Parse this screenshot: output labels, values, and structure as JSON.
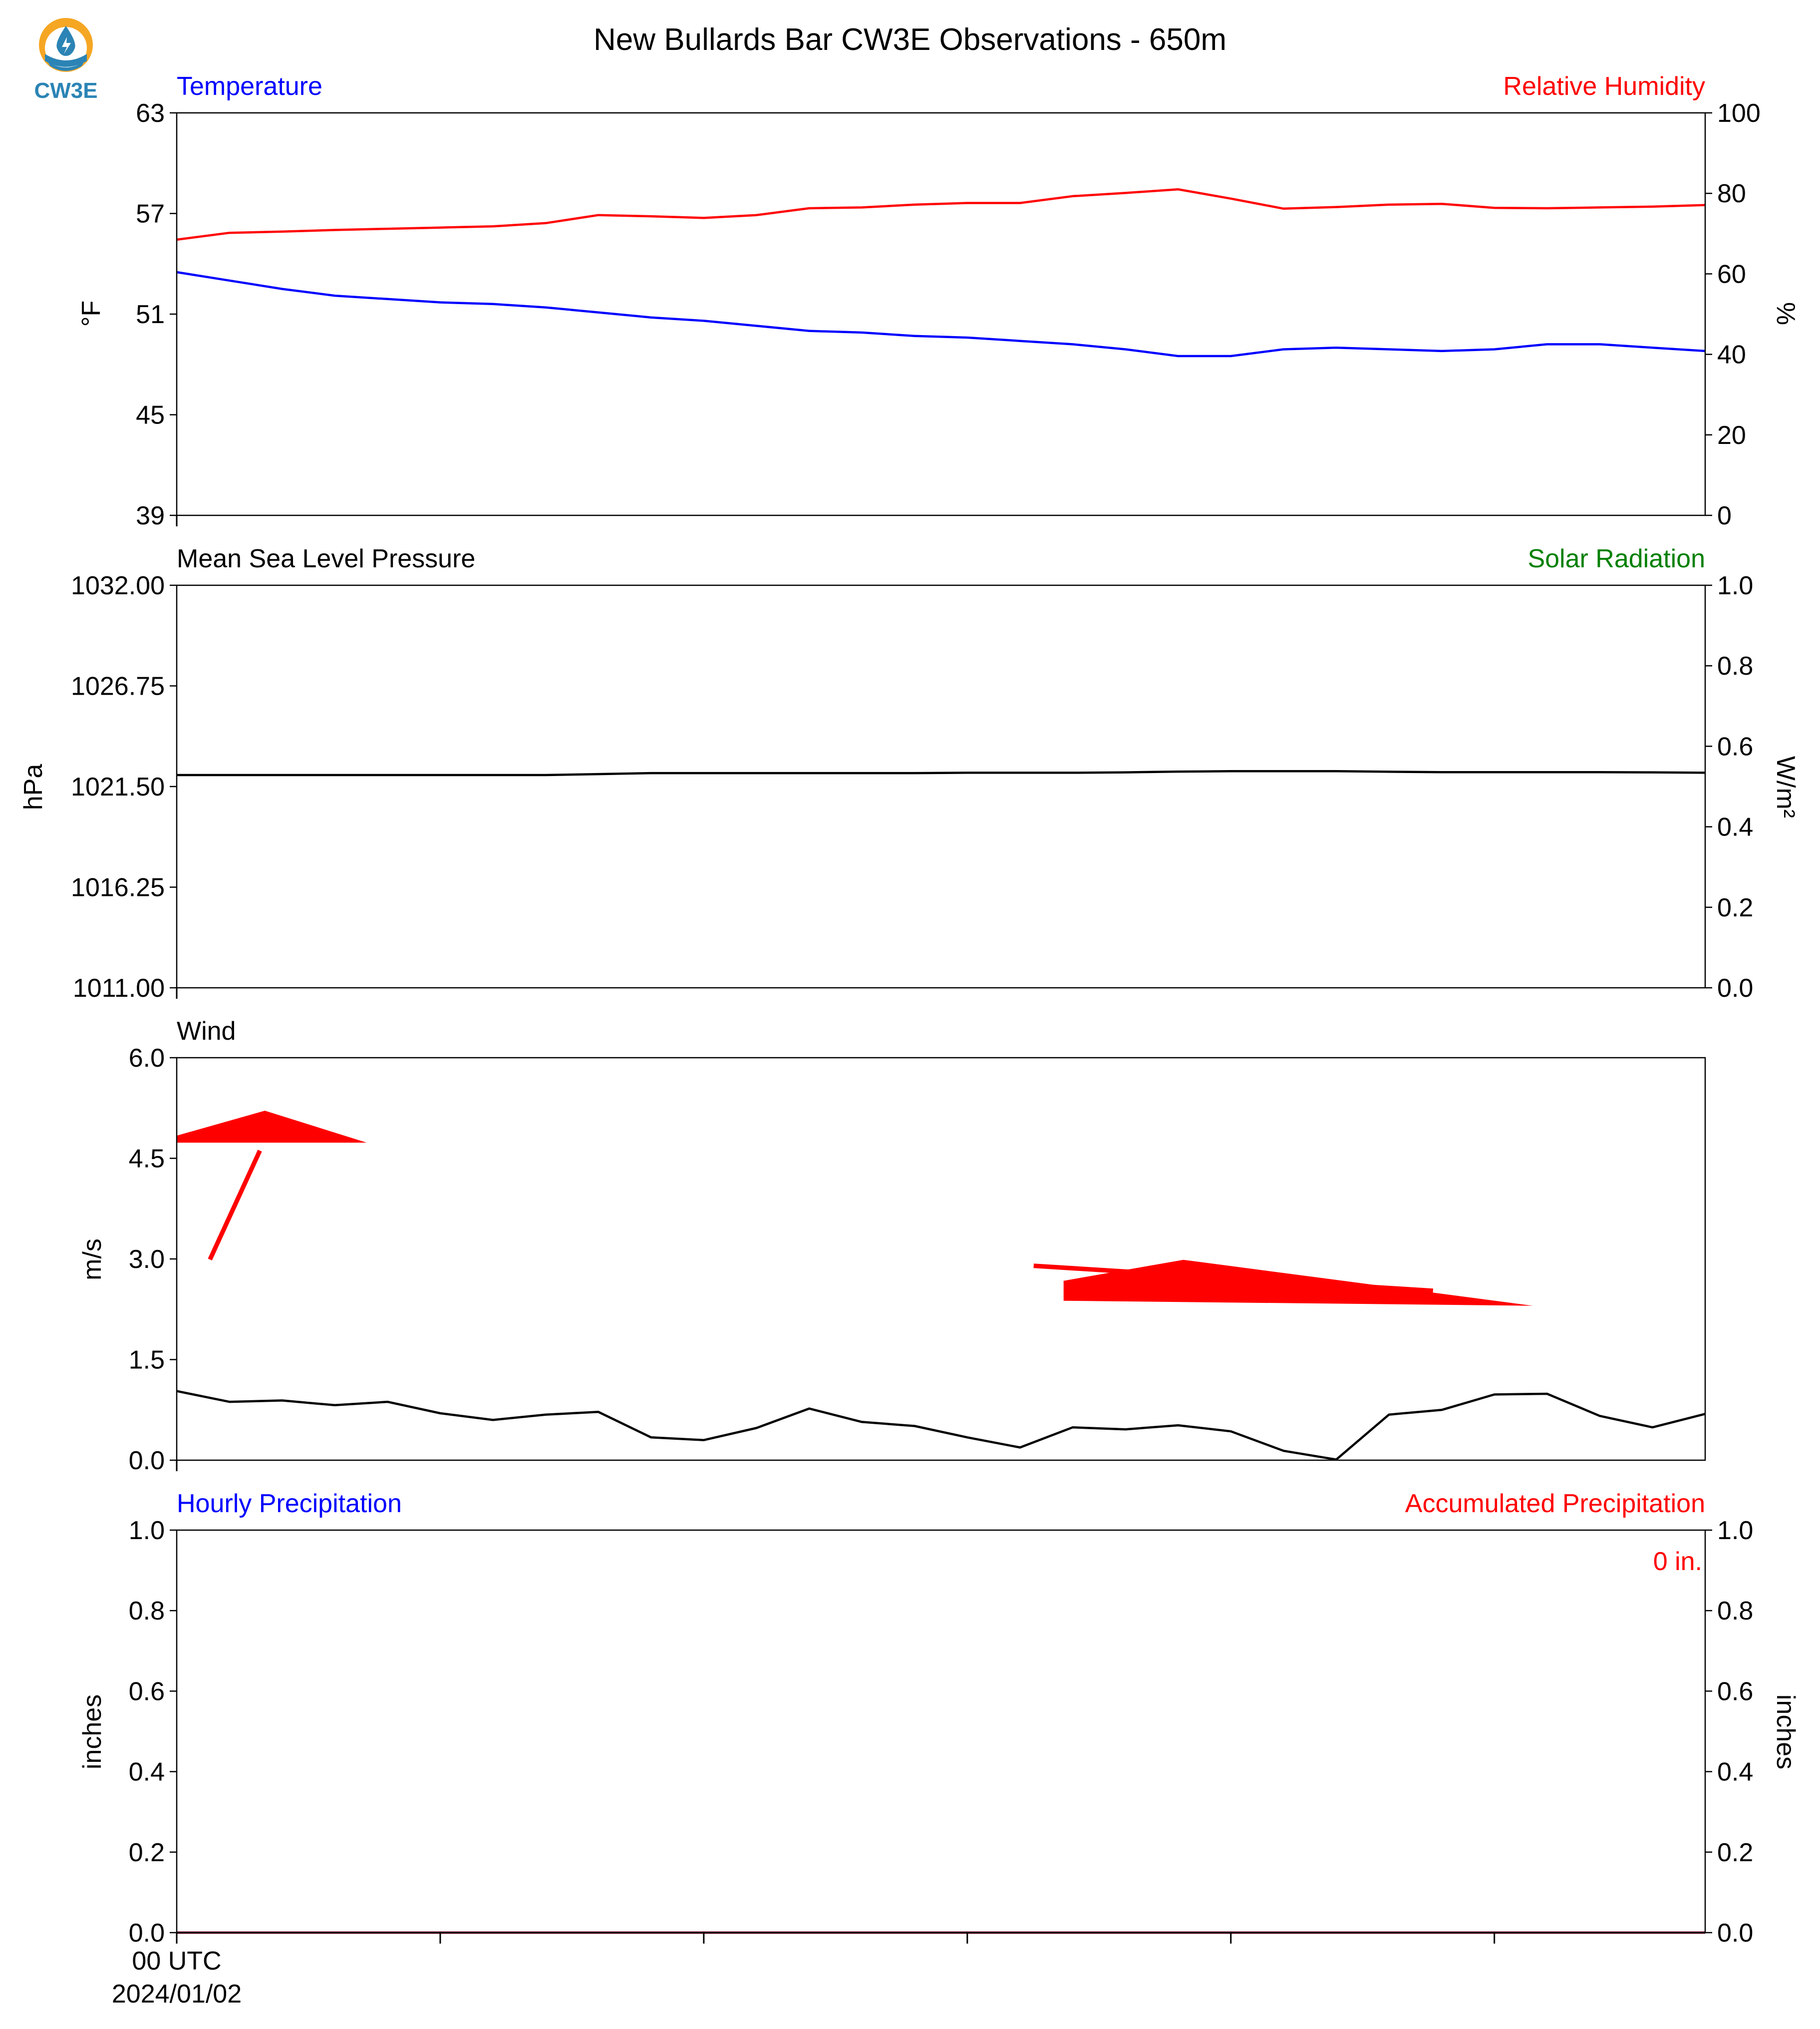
{
  "title": "New Bullards Bar CW3E Observations - 650m",
  "logo": {
    "text": "CW3E",
    "icon": "water-drop-sun-icon"
  },
  "colors": {
    "temperature": "#0000ff",
    "humidity": "#ff0000",
    "pressure": "#000000",
    "solar": "#008000",
    "wind_speed": "#000000",
    "wind_barb": "#ff0000",
    "hourly_precip": "#0000ff",
    "accum_precip": "#ff0000",
    "logo": "#2b84b5",
    "logo_sun": "#f5a623"
  },
  "chart_data": [
    {
      "type": "line",
      "panel": "temperature-humidity",
      "left_title": "Temperature",
      "right_title": "Relative Humidity",
      "ylabel": "°F",
      "ylabel_right": "%",
      "ylim": [
        39,
        63
      ],
      "yticks": [
        "63",
        "57",
        "51",
        "45",
        "39"
      ],
      "ylim_right": [
        0,
        100
      ],
      "yticks_right": [
        "100",
        "80",
        "60",
        "40",
        "20",
        "0"
      ],
      "x_hours": [
        0,
        1,
        2,
        3,
        4,
        5,
        6,
        7,
        8,
        9,
        10,
        11,
        12,
        13,
        14,
        15,
        16,
        17,
        18,
        19,
        20,
        21,
        22,
        23,
        24,
        25,
        26,
        27,
        28,
        29
      ],
      "series": [
        {
          "name": "Temperature",
          "axis": "left",
          "values": [
            53.5,
            53.0,
            52.5,
            52.1,
            51.9,
            51.7,
            51.6,
            51.4,
            51.1,
            50.8,
            50.6,
            50.3,
            50.0,
            49.9,
            49.7,
            49.6,
            49.4,
            49.2,
            48.9,
            48.5,
            48.5,
            48.9,
            49.0,
            48.9,
            48.8,
            48.9,
            49.2,
            49.2,
            49.0,
            48.8
          ]
        },
        {
          "name": "Relative Humidity",
          "axis": "right",
          "values": [
            68.5,
            70.2,
            70.5,
            70.9,
            71.2,
            71.5,
            71.8,
            72.6,
            74.6,
            74.3,
            73.9,
            74.6,
            76.3,
            76.5,
            77.2,
            77.6,
            77.6,
            79.3,
            80.1,
            81.0,
            78.7,
            76.2,
            76.6,
            77.2,
            77.4,
            76.4,
            76.3,
            76.5,
            76.7,
            77.1
          ]
        }
      ],
      "grid": false
    },
    {
      "type": "line",
      "panel": "pressure-solar",
      "left_title": "Mean Sea Level Pressure",
      "right_title": "Solar Radiation",
      "ylabel": "hPa",
      "ylabel_right": "W/m²",
      "ylim": [
        1011.0,
        1032.0
      ],
      "yticks": [
        "1032.00",
        "1026.75",
        "1021.50",
        "1016.25",
        "1011.00"
      ],
      "ylim_right": [
        0.0,
        1.0
      ],
      "yticks_right": [
        "1.0",
        "0.8",
        "0.6",
        "0.4",
        "0.2",
        "0.0"
      ],
      "x_hours": [
        0,
        1,
        2,
        3,
        4,
        5,
        6,
        7,
        8,
        9,
        10,
        11,
        12,
        13,
        14,
        15,
        16,
        17,
        18,
        19,
        20,
        21,
        22,
        23,
        24,
        25,
        26,
        27,
        28,
        29
      ],
      "series": [
        {
          "name": "Mean Sea Level Pressure",
          "axis": "left",
          "values": [
            1022.1,
            1022.1,
            1022.1,
            1022.1,
            1022.1,
            1022.1,
            1022.1,
            1022.1,
            1022.15,
            1022.2,
            1022.2,
            1022.2,
            1022.2,
            1022.2,
            1022.2,
            1022.22,
            1022.22,
            1022.22,
            1022.24,
            1022.28,
            1022.3,
            1022.3,
            1022.3,
            1022.27,
            1022.25,
            1022.25,
            1022.25,
            1022.25,
            1022.24,
            1022.22
          ]
        }
      ],
      "grid": false
    },
    {
      "type": "line",
      "panel": "wind",
      "left_title": "Wind",
      "ylabel": "m/s",
      "ylim": [
        0.0,
        6.0
      ],
      "yticks": [
        "6.0",
        "4.5",
        "3.0",
        "1.5",
        "0.0"
      ],
      "x_hours": [
        0,
        1,
        2,
        3,
        4,
        5,
        6,
        7,
        8,
        9,
        10,
        11,
        12,
        13,
        14,
        15,
        16,
        17,
        18,
        19,
        20,
        21,
        22,
        23,
        24,
        25,
        26,
        27,
        28,
        29
      ],
      "series": [
        {
          "name": "Wind Speed",
          "axis": "left",
          "values": [
            1.03,
            0.87,
            0.89,
            0.82,
            0.87,
            0.7,
            0.6,
            0.68,
            0.72,
            0.34,
            0.3,
            0.48,
            0.77,
            0.57,
            0.51,
            0.34,
            0.19,
            0.49,
            0.46,
            0.52,
            0.43,
            0.14,
            0.01,
            0.68,
            0.75,
            0.98,
            0.99,
            0.66,
            0.49,
            0.69
          ]
        }
      ],
      "wind_barbs": [
        {
          "hour": 1,
          "speed": 3.2,
          "direction_deg": 330,
          "flag": true
        },
        {
          "hour": 20,
          "speed": 2.6,
          "direction_deg": 275,
          "flag": true
        }
      ],
      "grid": false
    },
    {
      "type": "line",
      "panel": "precipitation",
      "left_title": "Hourly Precipitation",
      "right_title": "Accumulated Precipitation",
      "annotation": "0 in.",
      "ylabel": "inches",
      "ylabel_right": "inches",
      "ylim": [
        0.0,
        1.0
      ],
      "yticks": [
        "1.0",
        "0.8",
        "0.6",
        "0.4",
        "0.2",
        "0.0"
      ],
      "ylim_right": [
        0.0,
        1.0
      ],
      "yticks_right": [
        "1.0",
        "0.8",
        "0.6",
        "0.4",
        "0.2",
        "0.0"
      ],
      "x_hours": [
        0,
        1,
        2,
        3,
        4,
        5,
        6,
        7,
        8,
        9,
        10,
        11,
        12,
        13,
        14,
        15,
        16,
        17,
        18,
        19,
        20,
        21,
        22,
        23,
        24,
        25,
        26,
        27,
        28,
        29
      ],
      "series": [
        {
          "name": "Hourly Precipitation",
          "axis": "left",
          "values": [
            0,
            0,
            0,
            0,
            0,
            0,
            0,
            0,
            0,
            0,
            0,
            0,
            0,
            0,
            0,
            0,
            0,
            0,
            0,
            0,
            0,
            0,
            0,
            0,
            0,
            0,
            0,
            0,
            0,
            0
          ]
        },
        {
          "name": "Accumulated Precipitation",
          "axis": "right",
          "values": [
            0,
            0,
            0,
            0,
            0,
            0,
            0,
            0,
            0,
            0,
            0,
            0,
            0,
            0,
            0,
            0,
            0,
            0,
            0,
            0,
            0,
            0,
            0,
            0,
            0,
            0,
            0,
            0,
            0,
            0
          ]
        }
      ],
      "x_tick_hours": [
        0,
        5,
        10,
        15,
        20,
        25
      ],
      "x_tick_label_line1": "00 UTC",
      "x_tick_label_line2": "2024/01/02",
      "grid": false
    }
  ]
}
